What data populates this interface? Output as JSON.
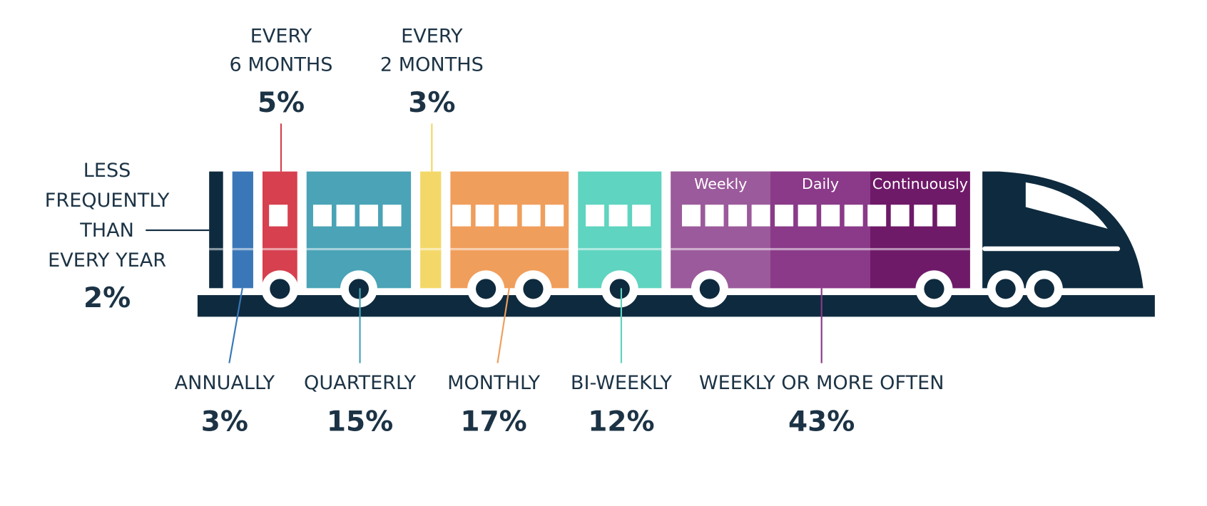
{
  "chart_data": {
    "type": "train",
    "categories": [
      [
        "LESS",
        "FREQUENTLY",
        "THAN",
        "EVERY YEAR"
      ],
      [
        "ANNUALLY"
      ],
      [
        "EVERY",
        "6 MONTHS"
      ],
      [
        "QUARTERLY"
      ],
      [
        "EVERY",
        "2 MONTHS"
      ],
      [
        "MONTHLY"
      ],
      [
        "BI-WEEKLY"
      ],
      [
        "WEEKLY OR MORE OFTEN"
      ]
    ],
    "values": [
      2,
      3,
      5,
      15,
      3,
      17,
      12,
      43
    ],
    "value_labels": [
      "2%",
      "3%",
      "5%",
      "15%",
      "3%",
      "17%",
      "12%",
      "43%"
    ],
    "colors": [
      "#0e2a3e",
      "#3a77b8",
      "#d6404f",
      "#4aa3b6",
      "#f3d869",
      "#f09e5c",
      "#5fd4c0",
      "#8a3a88"
    ],
    "segments": [
      {
        "name": "Weekly",
        "color": "#9b5a9b"
      },
      {
        "name": "Daily",
        "color": "#8a3a88"
      },
      {
        "name": "Continuously",
        "color": "#6e1a68"
      }
    ]
  }
}
